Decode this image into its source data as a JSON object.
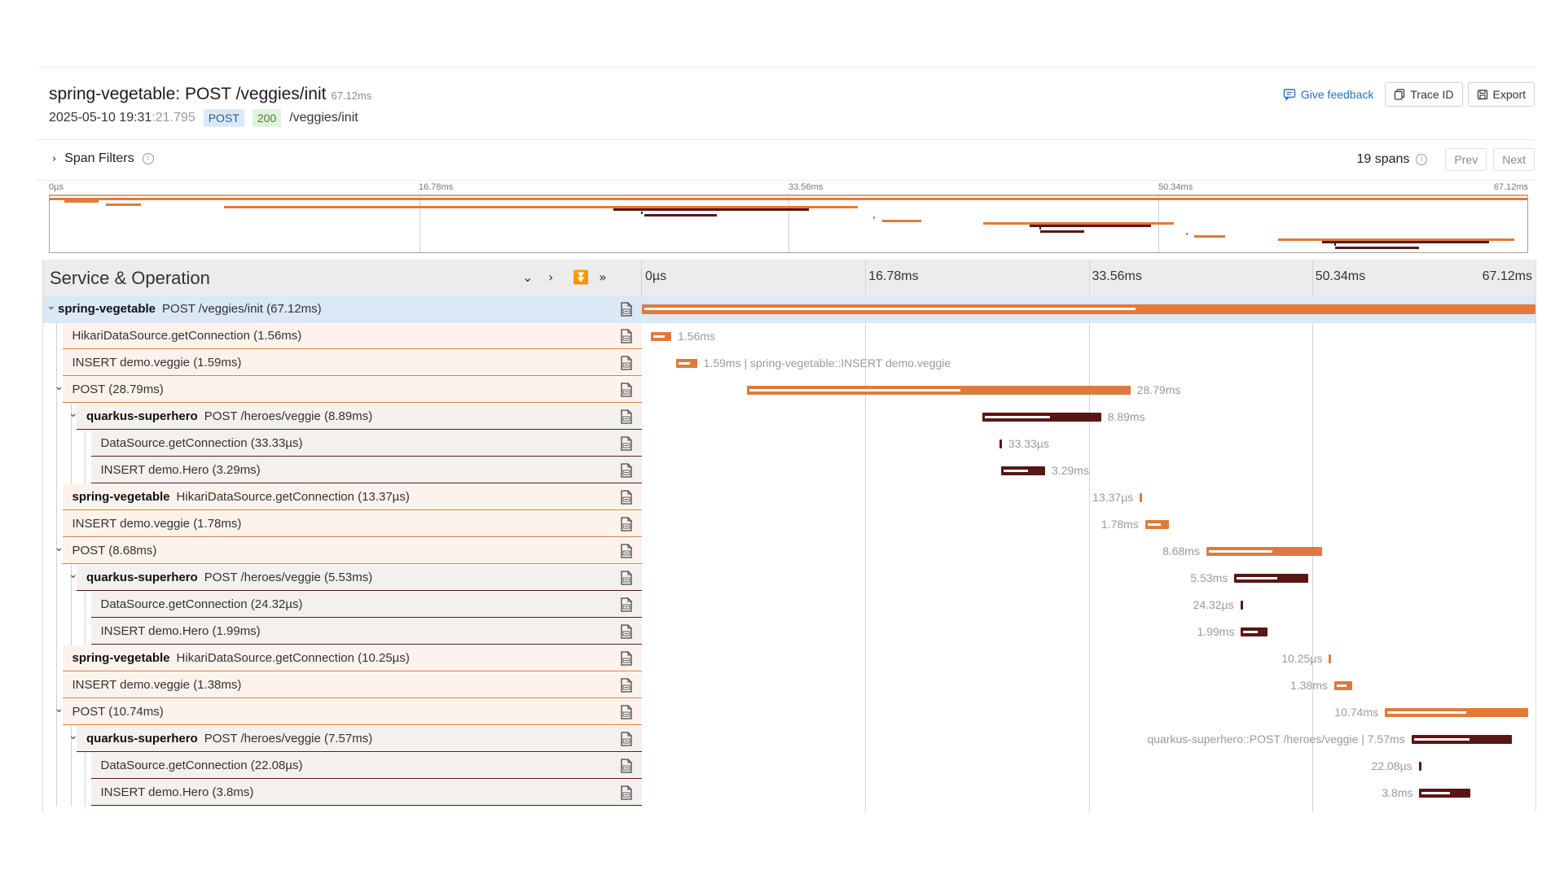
{
  "header": {
    "service": "spring-vegetable",
    "operation": "POST /veggies/init",
    "duration": "67.12ms",
    "date": "2025-05-10 19:31",
    "date_ms": ":21.795",
    "method": "POST",
    "status_code": "200",
    "path": "/veggies/init"
  },
  "actions": {
    "feedback": "Give feedback",
    "trace_id": "Trace ID",
    "export": "Export"
  },
  "filters": {
    "label": "Span Filters",
    "span_count": "19 spans",
    "prev": "Prev",
    "next": "Next"
  },
  "timeline": {
    "title": "Service & Operation",
    "total_ms": 67.12,
    "minimap_ticks": [
      "0µs",
      "16.78ms",
      "33.56ms",
      "50.34ms",
      "67.12ms"
    ],
    "ticks": [
      "0µs",
      "16.78ms",
      "33.56ms",
      "50.34ms",
      "67.12ms"
    ]
  },
  "colors": {
    "spring": "#e07a3c",
    "quarkus": "#5a1515",
    "selected": "#dbe8f5"
  },
  "spans": [
    {
      "depth": 0,
      "service": "spring-vegetable",
      "op": "POST /veggies/init (67.12ms)",
      "collapsible": true,
      "svc": "spring",
      "start": 0,
      "dur": 67.12,
      "label": ""
    },
    {
      "depth": 1,
      "service": "",
      "op": "HikariDataSource.getConnection (1.56ms)",
      "collapsible": false,
      "svc": "spring",
      "start": 0.65,
      "dur": 1.56,
      "label": "1.56ms",
      "side": "right"
    },
    {
      "depth": 1,
      "service": "",
      "op": "INSERT demo.veggie (1.59ms)",
      "collapsible": false,
      "svc": "spring",
      "start": 2.55,
      "dur": 1.59,
      "label": "1.59ms | spring-vegetable::INSERT demo.veggie",
      "side": "right"
    },
    {
      "depth": 1,
      "service": "",
      "op": "POST (28.79ms)",
      "collapsible": true,
      "svc": "spring",
      "start": 7.9,
      "dur": 28.79,
      "label": "28.79ms",
      "side": "right"
    },
    {
      "depth": 2,
      "service": "quarkus-superhero",
      "op": "POST /heroes/veggie (8.89ms)",
      "collapsible": true,
      "svc": "quarkus",
      "start": 25.6,
      "dur": 8.89,
      "label": "8.89ms",
      "side": "right"
    },
    {
      "depth": 3,
      "service": "",
      "op": "DataSource.getConnection (33.33µs)",
      "collapsible": false,
      "svc": "quarkus",
      "start": 26.85,
      "dur": 0.0333,
      "label": "33.33µs",
      "side": "right"
    },
    {
      "depth": 3,
      "service": "",
      "op": "INSERT demo.Hero (3.29ms)",
      "collapsible": false,
      "svc": "quarkus",
      "start": 27.0,
      "dur": 3.29,
      "label": "3.29ms",
      "side": "right"
    },
    {
      "depth": 1,
      "service": "spring-vegetable",
      "op": "HikariDataSource.getConnection (13.37µs)",
      "collapsible": false,
      "svc": "spring",
      "start": 37.4,
      "dur": 0.01337,
      "label": "13.37µs",
      "side": "left"
    },
    {
      "depth": 1,
      "service": "",
      "op": "INSERT demo.veggie (1.78ms)",
      "collapsible": false,
      "svc": "spring",
      "start": 37.8,
      "dur": 1.78,
      "label": "1.78ms",
      "side": "left"
    },
    {
      "depth": 1,
      "service": "",
      "op": "POST (8.68ms)",
      "collapsible": true,
      "svc": "spring",
      "start": 42.4,
      "dur": 8.68,
      "label": "8.68ms",
      "side": "left"
    },
    {
      "depth": 2,
      "service": "quarkus-superhero",
      "op": "POST /heroes/veggie (5.53ms)",
      "collapsible": true,
      "svc": "quarkus",
      "start": 44.5,
      "dur": 5.53,
      "label": "5.53ms",
      "side": "left"
    },
    {
      "depth": 3,
      "service": "",
      "op": "DataSource.getConnection (24.32µs)",
      "collapsible": false,
      "svc": "quarkus",
      "start": 44.95,
      "dur": 0.02432,
      "label": "24.32µs",
      "side": "left"
    },
    {
      "depth": 3,
      "service": "",
      "op": "INSERT demo.Hero (1.99ms)",
      "collapsible": false,
      "svc": "quarkus",
      "start": 45.0,
      "dur": 1.99,
      "label": "1.99ms",
      "side": "left"
    },
    {
      "depth": 1,
      "service": "spring-vegetable",
      "op": "HikariDataSource.getConnection (10.25µs)",
      "collapsible": false,
      "svc": "spring",
      "start": 51.6,
      "dur": 0.01025,
      "label": "10.25µs",
      "side": "left"
    },
    {
      "depth": 1,
      "service": "",
      "op": "INSERT demo.veggie (1.38ms)",
      "collapsible": false,
      "svc": "spring",
      "start": 52.0,
      "dur": 1.38,
      "label": "1.38ms",
      "side": "left"
    },
    {
      "depth": 1,
      "service": "",
      "op": "POST (10.74ms)",
      "collapsible": true,
      "svc": "spring",
      "start": 55.8,
      "dur": 10.74,
      "label": "10.74ms",
      "side": "left"
    },
    {
      "depth": 2,
      "service": "quarkus-superhero",
      "op": "POST /heroes/veggie (7.57ms)",
      "collapsible": true,
      "svc": "quarkus",
      "start": 57.8,
      "dur": 7.57,
      "label": "quarkus-superhero::POST /heroes/veggie | 7.57ms",
      "side": "left"
    },
    {
      "depth": 3,
      "service": "",
      "op": "DataSource.getConnection (22.08µs)",
      "collapsible": false,
      "svc": "quarkus",
      "start": 58.35,
      "dur": 0.02208,
      "label": "22.08µs",
      "side": "left"
    },
    {
      "depth": 3,
      "service": "",
      "op": "INSERT demo.Hero (3.8ms)",
      "collapsible": false,
      "svc": "quarkus",
      "start": 58.4,
      "dur": 3.8,
      "label": "3.8ms",
      "side": "left"
    }
  ]
}
